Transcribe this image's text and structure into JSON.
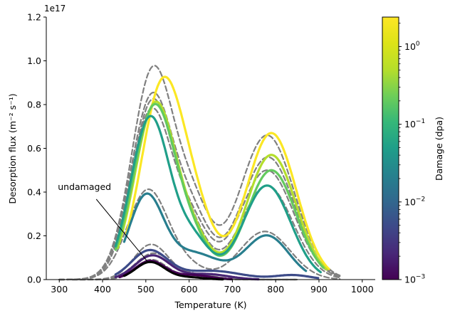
{
  "chart_data": {
    "type": "line",
    "xlabel": "Temperature (K)",
    "ylabel": "Desorption flux (m⁻² s⁻¹)",
    "offset_label": "1e17",
    "xlim": [
      270,
      1030
    ],
    "ylim": [
      0,
      1.2
    ],
    "x_ticks": [
      300,
      400,
      500,
      600,
      700,
      800,
      900,
      1000
    ],
    "y_ticks": [
      0.0,
      0.2,
      0.4,
      0.6,
      0.8,
      1.0,
      1.2
    ],
    "annotation": {
      "text": "undamaged",
      "text_xy": [
        300,
        0.4
      ],
      "arrow_to": [
        505,
        0.08
      ]
    },
    "colorbar": {
      "label": "Damage (dpa)",
      "scale": "log",
      "range": [
        0.001,
        2.4
      ],
      "tick_labels": [
        {
          "base": "10",
          "exp": "−3",
          "value": 0.001
        },
        {
          "base": "10",
          "exp": "−2",
          "value": 0.01
        },
        {
          "base": "10",
          "exp": "−1",
          "value": 0.1
        },
        {
          "base": "10",
          "exp": "0",
          "value": 1
        }
      ]
    },
    "series": [
      {
        "kind": "sim",
        "peaks": [
          [
            517,
            0.96,
            49
          ],
          [
            612,
            0.28,
            40
          ],
          [
            780,
            0.66,
            63
          ]
        ],
        "tmin": 300,
        "tmax": 950
      },
      {
        "kind": "sim",
        "peaks": [
          [
            515,
            0.84,
            49
          ],
          [
            610,
            0.24,
            40
          ],
          [
            782,
            0.56,
            62
          ]
        ],
        "tmin": 300,
        "tmax": 950
      },
      {
        "kind": "sim",
        "peaks": [
          [
            513,
            0.77,
            48
          ],
          [
            608,
            0.22,
            40
          ],
          [
            780,
            0.5,
            62
          ]
        ],
        "tmin": 300,
        "tmax": 950
      },
      {
        "kind": "sim",
        "peaks": [
          [
            515,
            0.81,
            47
          ],
          [
            605,
            0.2,
            40
          ],
          [
            780,
            0.43,
            60
          ]
        ],
        "tmin": 300,
        "tmax": 950
      },
      {
        "kind": "sim",
        "peaks": [
          [
            505,
            0.41,
            47
          ],
          [
            600,
            0.05,
            40
          ],
          [
            775,
            0.22,
            58
          ]
        ],
        "tmin": 300,
        "tmax": 950
      },
      {
        "kind": "sim",
        "peaks": [
          [
            512,
            0.16,
            40
          ],
          [
            620,
            0.02,
            45
          ]
        ],
        "tmin": 330,
        "tmax": 850
      },
      {
        "kind": "sim",
        "peaks": [
          [
            518,
            0.12,
            42
          ],
          [
            620,
            0.02,
            40
          ]
        ],
        "tmin": 330,
        "tmax": 850
      },
      {
        "kind": "sim",
        "peaks": [
          [
            512,
            0.09,
            35
          ],
          [
            600,
            0.015,
            40
          ]
        ],
        "tmin": 330,
        "tmax": 850
      },
      {
        "kind": "exp",
        "dpa": 2.3,
        "peaks": [
          [
            540,
            0.9,
            50
          ],
          [
            622,
            0.2,
            40
          ],
          [
            790,
            0.67,
            58
          ]
        ],
        "tmin": 455,
        "tmax": 925
      },
      {
        "kind": "exp",
        "dpa": 0.5,
        "peaks": [
          [
            522,
            0.8,
            47
          ],
          [
            612,
            0.16,
            40
          ],
          [
            790,
            0.57,
            57
          ]
        ],
        "tmin": 435,
        "tmax": 918
      },
      {
        "kind": "exp",
        "dpa": 0.2,
        "peaks": [
          [
            520,
            0.79,
            48
          ],
          [
            610,
            0.15,
            40
          ],
          [
            790,
            0.5,
            57
          ]
        ],
        "tmin": 430,
        "tmax": 912
      },
      {
        "kind": "exp",
        "dpa": 0.05,
        "peaks": [
          [
            510,
            0.74,
            45
          ],
          [
            610,
            0.17,
            40
          ],
          [
            780,
            0.43,
            55
          ]
        ],
        "tmin": 430,
        "tmax": 905
      },
      {
        "kind": "exp",
        "dpa": 0.02,
        "peaks": [
          [
            500,
            0.37,
            40
          ],
          [
            610,
            0.12,
            60
          ],
          [
            780,
            0.2,
            50
          ]
        ],
        "tmin": 450,
        "tmax": 870
      },
      {
        "kind": "exp",
        "dpa": 0.005,
        "peaks": [
          [
            508,
            0.13,
            42
          ],
          [
            650,
            0.04,
            70
          ],
          [
            840,
            0.02,
            40
          ]
        ],
        "tmin": 430,
        "tmax": 900
      },
      {
        "kind": "exp",
        "dpa": 0.002,
        "peaks": [
          [
            515,
            0.11,
            40
          ],
          [
            640,
            0.025,
            50
          ]
        ],
        "tmin": 430,
        "tmax": 760
      },
      {
        "kind": "exp",
        "dpa": 0.001,
        "peaks": [
          [
            510,
            0.085,
            35
          ],
          [
            610,
            0.02,
            40
          ]
        ],
        "tmin": 440,
        "tmax": 700
      },
      {
        "kind": "undamaged",
        "peaks": [
          [
            510,
            0.08,
            34
          ],
          [
            600,
            0.01,
            35
          ]
        ],
        "tmin": 450,
        "tmax": 680
      }
    ]
  }
}
